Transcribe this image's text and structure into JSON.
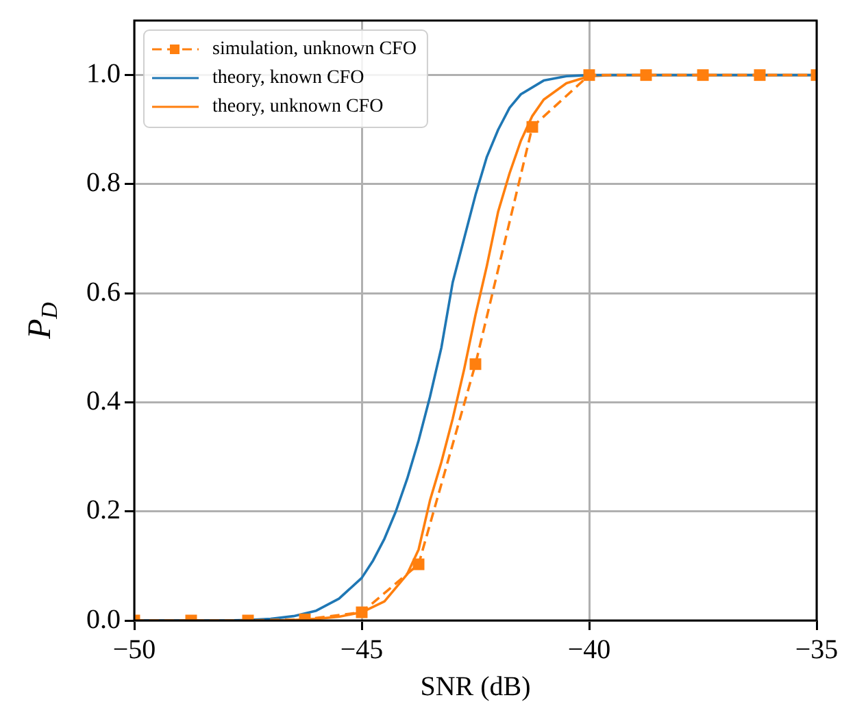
{
  "chart_data": {
    "type": "line",
    "xlabel": "SNR (dB)",
    "ylabel": "P$_{D}$",
    "xlim": [
      -50,
      -35
    ],
    "xticks": [
      -50,
      -45,
      -40,
      -35
    ],
    "ylim": [
      0,
      1.1
    ],
    "yticks": [
      {
        "value": 0,
        "label": "0.0"
      },
      0.2,
      0.4,
      0.6,
      0.8,
      {
        "value": 1,
        "label": "1.0"
      }
    ],
    "grid": true,
    "legend": "top left",
    "series": [
      {
        "name": "simulation, unknown CFO",
        "color": "#ff7f0e",
        "line_style": "dashed",
        "marker": "square",
        "x": [
          -50,
          -48.75,
          -47.5,
          -46.25,
          -45,
          -43.75,
          -42.5,
          -41.25,
          -40,
          -38.75,
          -37.5,
          -36.25,
          -35
        ],
        "values": [
          0,
          0,
          0,
          0.002,
          0.015,
          0.103,
          0.47,
          0.905,
          1,
          1,
          1,
          1,
          1
        ]
      },
      {
        "name": "theory, known CFO",
        "color": "#1f77b4",
        "line_style": "solid",
        "marker": "none",
        "x": [
          -50,
          -48,
          -47.5,
          -47,
          -46.5,
          -46,
          -45.5,
          -45,
          -44.75,
          -44.5,
          -44.25,
          -44,
          -43.75,
          -43.5,
          -43.25,
          -43,
          -42.75,
          -42.5,
          -42.25,
          -42,
          -41.75,
          -41.5,
          -41,
          -40.5,
          -40,
          -35
        ],
        "values": [
          0,
          0,
          0.001,
          0.003,
          0.008,
          0.018,
          0.04,
          0.078,
          0.11,
          0.15,
          0.2,
          0.26,
          0.33,
          0.41,
          0.5,
          0.62,
          0.7,
          0.78,
          0.85,
          0.9,
          0.94,
          0.965,
          0.99,
          0.998,
          1,
          1
        ]
      },
      {
        "name": "theory, unknown CFO",
        "color": "#ff7f0e",
        "line_style": "solid",
        "marker": "none",
        "x": [
          -50,
          -47,
          -46.5,
          -46,
          -45.5,
          -45,
          -44.5,
          -44,
          -43.75,
          -43.5,
          -43.25,
          -43,
          -42.75,
          -42.5,
          -42.25,
          -42,
          -41.75,
          -41.5,
          -41.25,
          -41,
          -40.5,
          -40,
          -39.5,
          -35
        ],
        "values": [
          0,
          0,
          0.001,
          0.003,
          0.007,
          0.015,
          0.035,
          0.085,
          0.13,
          0.22,
          0.29,
          0.37,
          0.46,
          0.56,
          0.65,
          0.75,
          0.82,
          0.88,
          0.925,
          0.955,
          0.985,
          0.998,
          1,
          1
        ]
      }
    ]
  }
}
